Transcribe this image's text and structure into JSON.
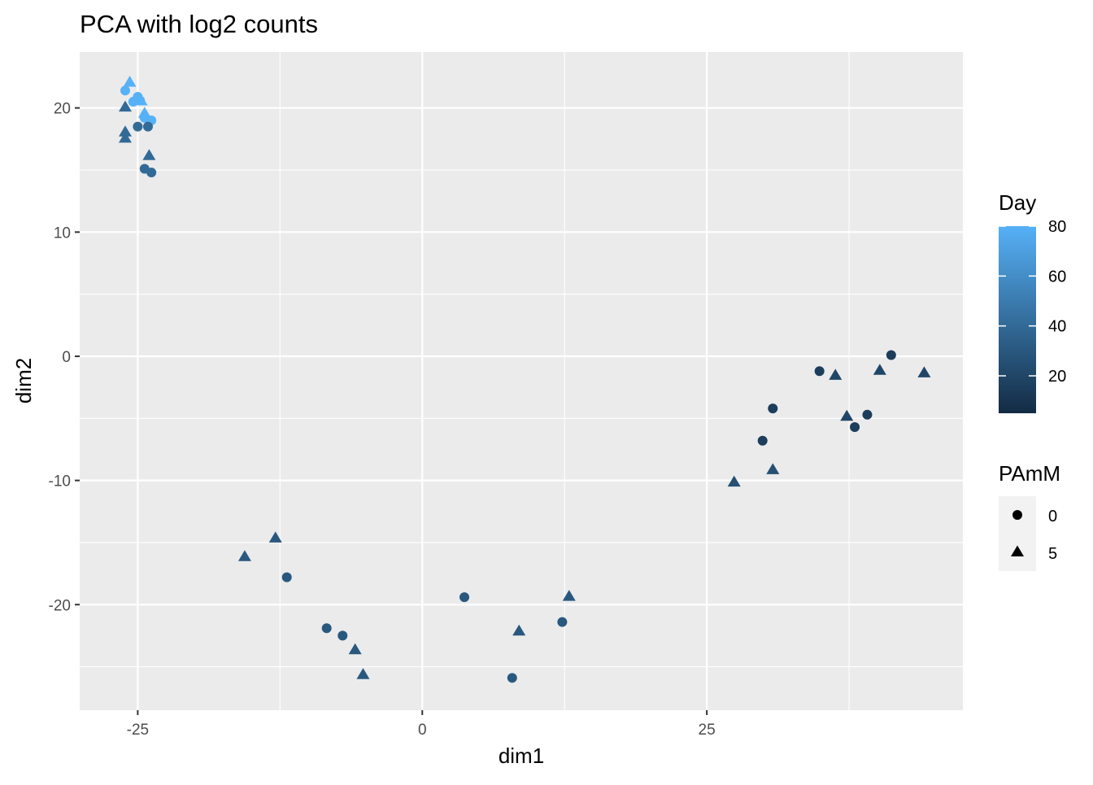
{
  "chart_data": {
    "type": "scatter",
    "title": "PCA with log2 counts",
    "xlabel": "dim1",
    "ylabel": "dim2",
    "xlim": [
      -30.1,
      47.5
    ],
    "ylim": [
      -28.5,
      24.5
    ],
    "x_ticks": [
      -25,
      0,
      25
    ],
    "x_tick_labels": [
      "-25",
      "0",
      "25"
    ],
    "x_minor_ticks": [
      -12.5,
      12.5,
      37.5
    ],
    "y_ticks": [
      -20,
      -10,
      0,
      10,
      20
    ],
    "y_tick_labels": [
      "-20",
      "-10",
      "0",
      "10",
      "20"
    ],
    "y_minor_ticks": [
      -25,
      -15,
      -5,
      5,
      15
    ],
    "grid": true,
    "panel_background": "#EBEBEB",
    "grid_color": "#FFFFFF",
    "color_scale": {
      "title": "Day",
      "range": [
        5,
        80
      ],
      "low_color": "#132B43",
      "high_color": "#56B1F7",
      "ticks": [
        20,
        40,
        60,
        80
      ],
      "tick_labels": [
        "20",
        "40",
        "60",
        "80"
      ]
    },
    "shape_legend": {
      "title": "PAmM",
      "entries": [
        {
          "label": "0",
          "shape": "circle"
        },
        {
          "label": "5",
          "shape": "triangle"
        }
      ]
    },
    "legend_position": "right",
    "points": [
      {
        "x": -26.1,
        "y": 21.4,
        "day": 80,
        "pamm": "0"
      },
      {
        "x": -24.8,
        "y": 20.6,
        "day": 80,
        "pamm": "0"
      },
      {
        "x": -25.4,
        "y": 20.5,
        "day": 80,
        "pamm": "0"
      },
      {
        "x": -25.0,
        "y": 20.9,
        "day": 80,
        "pamm": "0"
      },
      {
        "x": -23.8,
        "y": 19.0,
        "day": 80,
        "pamm": "0"
      },
      {
        "x": -24.4,
        "y": 19.2,
        "day": 80,
        "pamm": "0"
      },
      {
        "x": -25.0,
        "y": 18.5,
        "day": 40,
        "pamm": "0"
      },
      {
        "x": -24.1,
        "y": 18.5,
        "day": 40,
        "pamm": "0"
      },
      {
        "x": -24.4,
        "y": 15.1,
        "day": 40,
        "pamm": "0"
      },
      {
        "x": -23.8,
        "y": 14.8,
        "day": 40,
        "pamm": "0"
      },
      {
        "x": -25.7,
        "y": 22.1,
        "day": 80,
        "pamm": "5"
      },
      {
        "x": -24.7,
        "y": 20.6,
        "day": 80,
        "pamm": "5"
      },
      {
        "x": -24.4,
        "y": 19.6,
        "day": 80,
        "pamm": "5"
      },
      {
        "x": -26.1,
        "y": 20.1,
        "day": 40,
        "pamm": "5"
      },
      {
        "x": -26.1,
        "y": 18.1,
        "day": 40,
        "pamm": "5"
      },
      {
        "x": -26.1,
        "y": 17.6,
        "day": 40,
        "pamm": "5"
      },
      {
        "x": -24.0,
        "y": 16.2,
        "day": 40,
        "pamm": "5"
      },
      {
        "x": -11.9,
        "y": -17.8,
        "day": 30,
        "pamm": "0"
      },
      {
        "x": -8.4,
        "y": -21.9,
        "day": 30,
        "pamm": "0"
      },
      {
        "x": -7.0,
        "y": -22.5,
        "day": 30,
        "pamm": "0"
      },
      {
        "x": 3.7,
        "y": -19.4,
        "day": 30,
        "pamm": "0"
      },
      {
        "x": 7.9,
        "y": -25.9,
        "day": 30,
        "pamm": "0"
      },
      {
        "x": 12.3,
        "y": -21.4,
        "day": 30,
        "pamm": "0"
      },
      {
        "x": -15.6,
        "y": -16.1,
        "day": 30,
        "pamm": "5"
      },
      {
        "x": -12.9,
        "y": -14.6,
        "day": 30,
        "pamm": "5"
      },
      {
        "x": -5.9,
        "y": -23.6,
        "day": 30,
        "pamm": "5"
      },
      {
        "x": -5.2,
        "y": -25.6,
        "day": 30,
        "pamm": "5"
      },
      {
        "x": 8.5,
        "y": -22.1,
        "day": 30,
        "pamm": "5"
      },
      {
        "x": 12.9,
        "y": -19.3,
        "day": 30,
        "pamm": "5"
      },
      {
        "x": 29.9,
        "y": -6.8,
        "day": 15,
        "pamm": "0"
      },
      {
        "x": 30.8,
        "y": -4.2,
        "day": 15,
        "pamm": "0"
      },
      {
        "x": 34.9,
        "y": -1.2,
        "day": 15,
        "pamm": "0"
      },
      {
        "x": 38.0,
        "y": -5.7,
        "day": 15,
        "pamm": "0"
      },
      {
        "x": 39.1,
        "y": -4.7,
        "day": 15,
        "pamm": "0"
      },
      {
        "x": 41.2,
        "y": 0.1,
        "day": 15,
        "pamm": "0"
      },
      {
        "x": 27.4,
        "y": -10.1,
        "day": 25,
        "pamm": "5"
      },
      {
        "x": 30.8,
        "y": -9.1,
        "day": 25,
        "pamm": "5"
      },
      {
        "x": 36.3,
        "y": -1.5,
        "day": 20,
        "pamm": "5"
      },
      {
        "x": 37.3,
        "y": -4.8,
        "day": 20,
        "pamm": "5"
      },
      {
        "x": 40.2,
        "y": -1.1,
        "day": 20,
        "pamm": "5"
      },
      {
        "x": 44.1,
        "y": -1.3,
        "day": 20,
        "pamm": "5"
      }
    ]
  }
}
